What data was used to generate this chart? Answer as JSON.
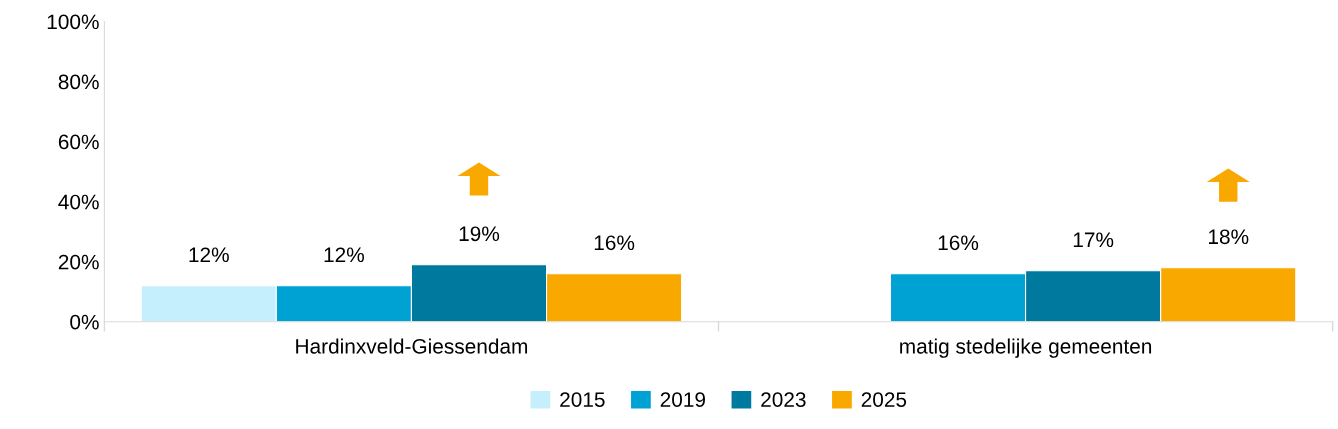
{
  "chart_data": {
    "type": "bar",
    "categories": [
      "Hardinxveld-Giessendam",
      "matig stedelijke gemeenten"
    ],
    "series": [
      {
        "name": "2015",
        "color": "#c5effc",
        "values": [
          12,
          null
        ],
        "value_labels": [
          "12%",
          null
        ]
      },
      {
        "name": "2019",
        "color": "#00a2d4",
        "values": [
          12,
          16
        ],
        "value_labels": [
          "12%",
          "16%"
        ]
      },
      {
        "name": "2023",
        "color": "#00799e",
        "values": [
          19,
          17
        ],
        "value_labels": [
          "19%",
          "17%"
        ]
      },
      {
        "name": "2025",
        "color": "#f9a800",
        "values": [
          16,
          18
        ],
        "value_labels": [
          "16%",
          "18%"
        ]
      }
    ],
    "ylim": [
      0,
      100
    ],
    "yticks": [
      {
        "value": 0,
        "label": "0%"
      },
      {
        "value": 20,
        "label": "20%"
      },
      {
        "value": 40,
        "label": "40%"
      },
      {
        "value": 60,
        "label": "60%"
      },
      {
        "value": 80,
        "label": "80%"
      },
      {
        "value": 100,
        "label": "100%"
      }
    ],
    "grid": false,
    "legend": "bottom"
  }
}
